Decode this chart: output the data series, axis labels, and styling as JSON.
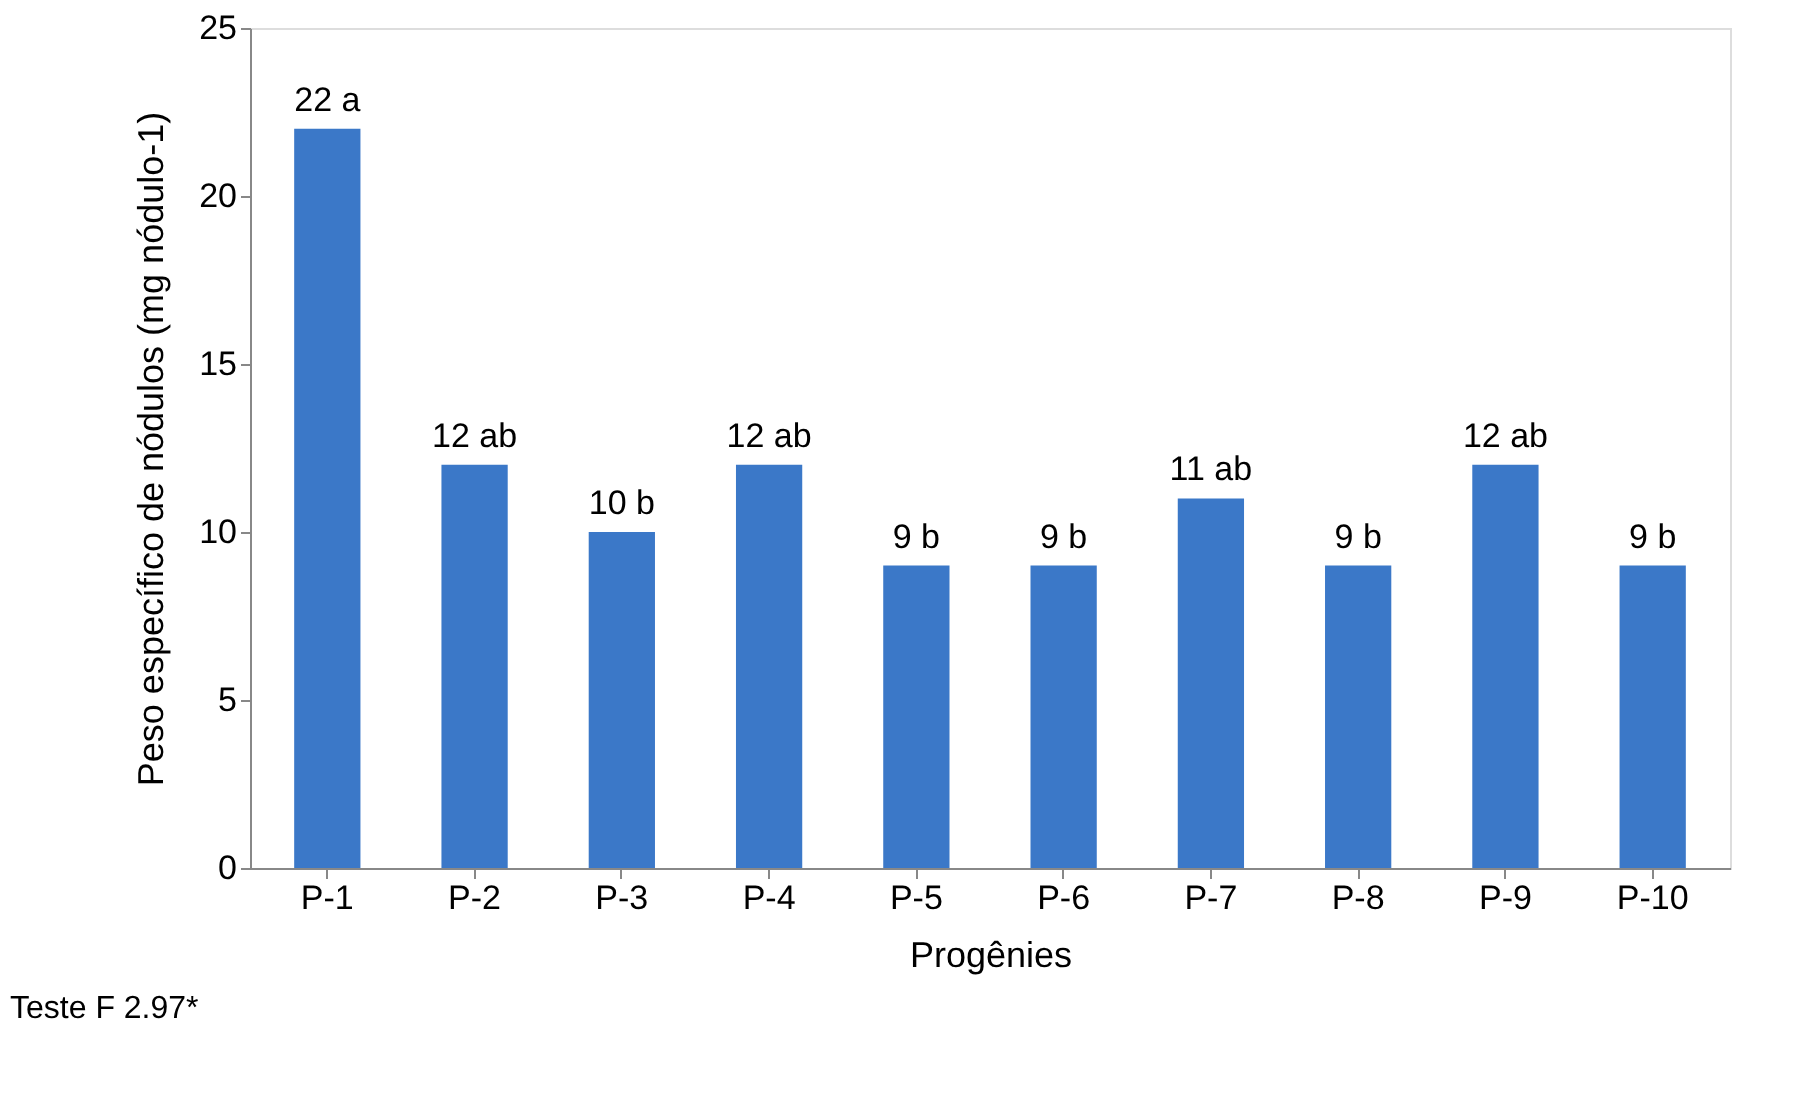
{
  "chart_data": {
    "type": "bar",
    "xlabel": "Progênies",
    "ylabel": "Peso específico de nódulos (mg nódulo-1)",
    "categories": [
      "P-1",
      "P-2",
      "P-3",
      "P-4",
      "P-5",
      "P-6",
      "P-7",
      "P-8",
      "P-9",
      "P-10"
    ],
    "values": [
      22,
      12,
      10,
      12,
      9,
      9,
      11,
      9,
      12,
      9
    ],
    "value_labels": [
      "22 a",
      "12 ab",
      "10 b",
      "12 ab",
      "9 b",
      "9 b",
      "11 ab",
      "9 b",
      "12 ab",
      "9 b"
    ],
    "color": "#3b78c8",
    "ylim": [
      0,
      25
    ],
    "yticks": [
      0,
      5,
      10,
      15,
      20,
      25
    ],
    "grid": false,
    "annotations": [
      "Teste F 2.97*"
    ]
  }
}
